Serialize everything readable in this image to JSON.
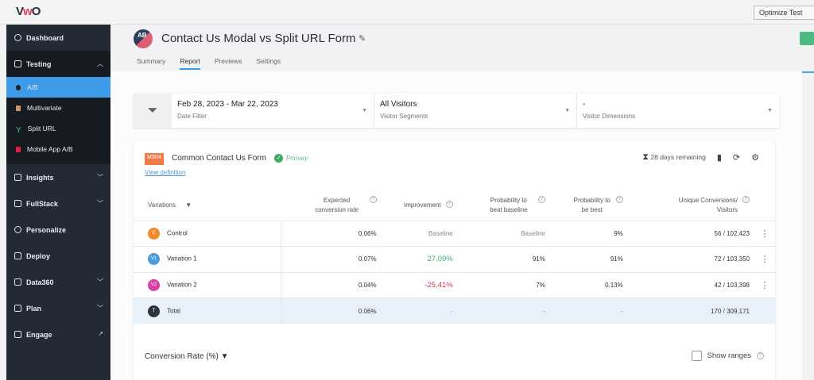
{
  "topbar": {
    "logo": "VWO",
    "optimize_button": "Optimize Test"
  },
  "sidebar": {
    "items": [
      {
        "label": "Dashboard"
      },
      {
        "label": "Testing",
        "expanded": true
      },
      {
        "label": "A/B",
        "active": true
      },
      {
        "label": "Multivariate"
      },
      {
        "label": "Split URL"
      },
      {
        "label": "Mobile App A/B"
      },
      {
        "label": "Insights"
      },
      {
        "label": "FullStack"
      },
      {
        "label": "Personalize"
      },
      {
        "label": "Deploy"
      },
      {
        "label": "Data360"
      },
      {
        "label": "Plan"
      },
      {
        "label": "Engage"
      }
    ]
  },
  "header": {
    "test_icon": "AB",
    "title": "Contact Us Modal vs Split URL Form",
    "tabs": [
      "Summary",
      "Report",
      "Previews",
      "Settings"
    ],
    "active_tab": "Report"
  },
  "filters": [
    {
      "value": "Feb 28, 2023 - Mar 22, 2023",
      "label": "Date Filter"
    },
    {
      "value": "All Visitors",
      "label": "Visitor Segments"
    },
    {
      "value": "-",
      "label": "Visitor Dimensions"
    }
  ],
  "goal": {
    "badge": "M304",
    "name": "Common Contact Us Form",
    "status": "Primary",
    "view_definition": "View definition",
    "remaining": "28 days remaining"
  },
  "table": {
    "headers": [
      "Variations",
      "Expected conversion rate",
      "Improvement",
      "Probability to beat baseline",
      "Probability to be best",
      "Unique Conversions/ Visitors"
    ],
    "rows": [
      {
        "avatar": "C",
        "color": "#f08a2c",
        "name": "Control",
        "rate": "0.06%",
        "improvement": "Baseline",
        "beat": "Baseline",
        "best": "9%",
        "conv": "56 / 102,423"
      },
      {
        "avatar": "V1",
        "color": "#4a9be0",
        "name": "Variation 1",
        "rate": "0.07%",
        "improvement": "27.09%",
        "beat": "91%",
        "best": "91%",
        "conv": "72 / 103,350"
      },
      {
        "avatar": "V2",
        "color": "#d63fa8",
        "name": "Variation 2",
        "rate": "0.04%",
        "improvement": "-25.41%",
        "beat": "7%",
        "best": "0.13%",
        "conv": "42 / 103,398"
      },
      {
        "avatar": "T",
        "color": "#2c3440",
        "name": "Total",
        "rate": "0.06%",
        "improvement": "-",
        "beat": "-",
        "best": "-",
        "conv": "170 / 309,171"
      }
    ]
  },
  "chart_section": {
    "metric": "Conversion Rate (%)",
    "show_ranges": "Show ranges"
  }
}
